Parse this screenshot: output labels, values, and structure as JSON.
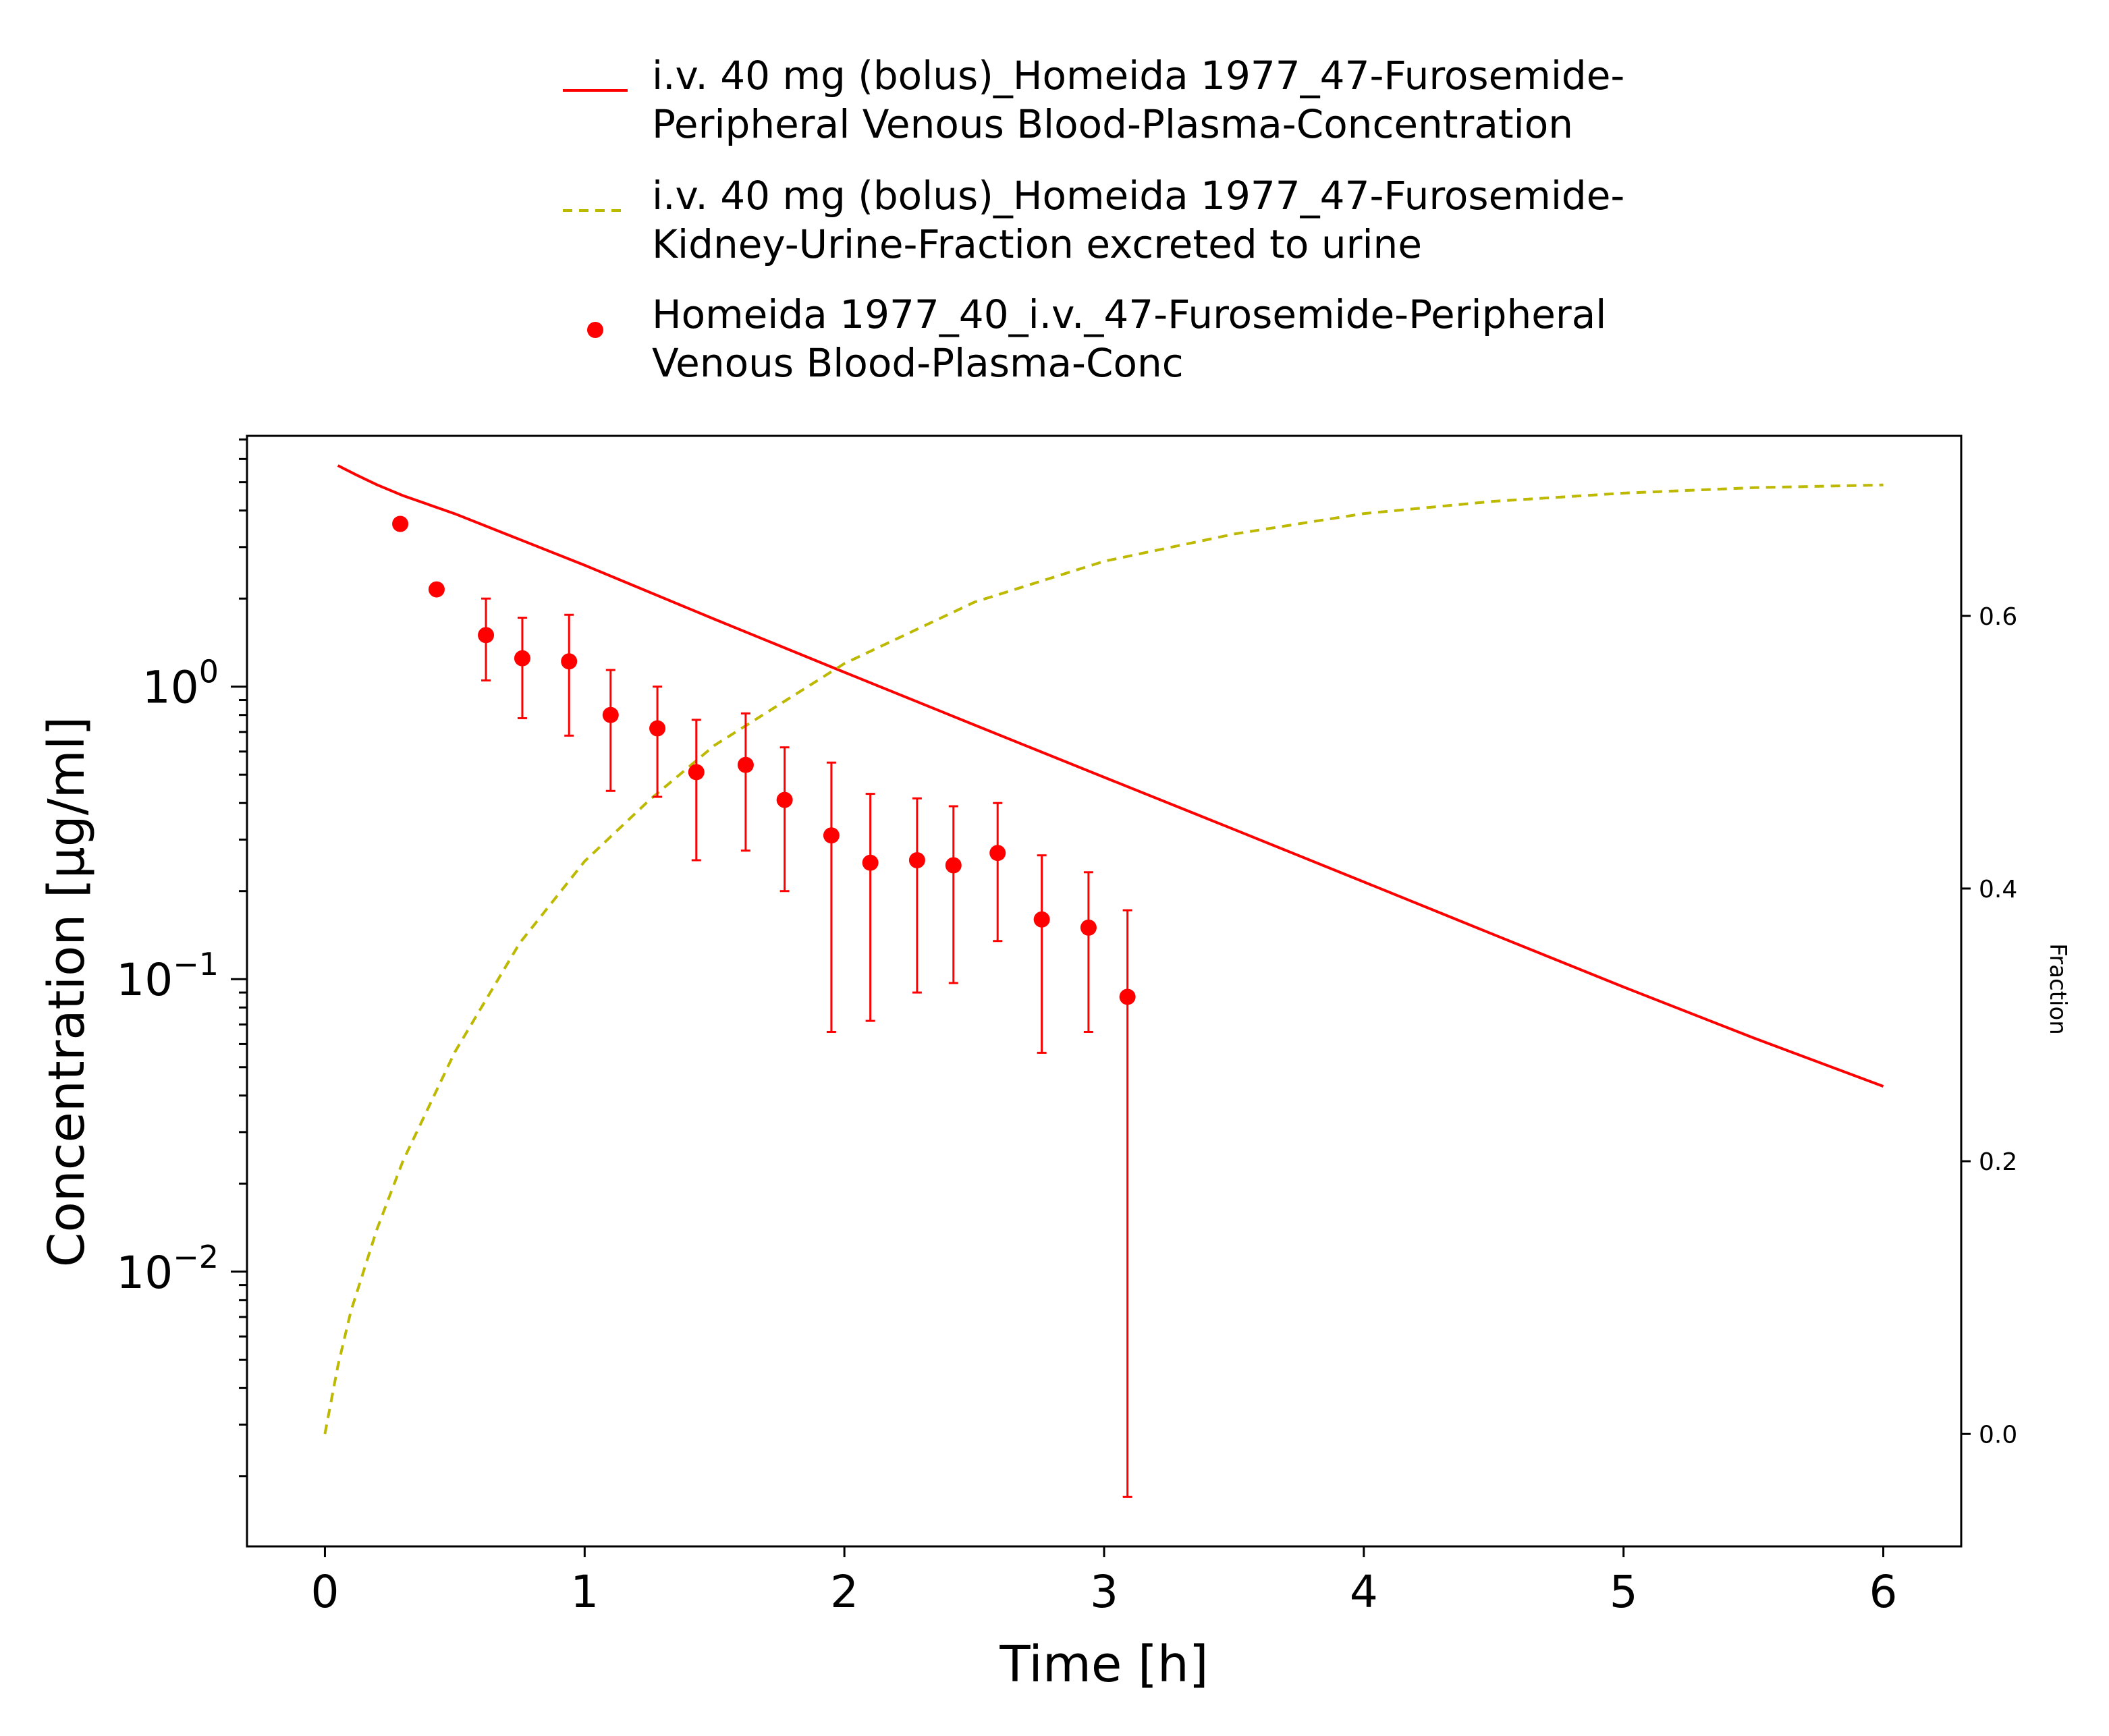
{
  "colors": {
    "plasma_line": "#ff0000",
    "urine_line": "#bdb800",
    "observed": "#ff0000",
    "axis": "#000000"
  },
  "chart_data": {
    "type": "line",
    "xlabel": "Time [h]",
    "ylabel": "Concentration [µg/ml]",
    "y2label": "Fraction",
    "xlim": [
      -0.3,
      6.3
    ],
    "ylim": [
      0.00115,
      7.2
    ],
    "yscale": "log",
    "y2lim": [
      -0.0825,
      0.732
    ],
    "legend_placement": "top",
    "x_ticks": [
      0,
      1,
      2,
      3,
      4,
      5,
      6
    ],
    "y_ticks": [
      {
        "value": 1,
        "base": "10",
        "exp": "0"
      },
      {
        "value": 0.1,
        "base": "10",
        "exp": "−1"
      },
      {
        "value": 0.01,
        "base": "10",
        "exp": "−2"
      }
    ],
    "y2_ticks": [
      "0.0",
      "0.2",
      "0.4",
      "0.6"
    ],
    "series": [
      {
        "name": "i.v. 40 mg (bolus)_Homeida 1977_47-Furosemide-Peripheral Venous Blood-Plasma-Concentration",
        "legend_lines": [
          "i.v. 40 mg (bolus)_Homeida 1977_47-Furosemide-",
          "Peripheral Venous Blood-Plasma-Concentration"
        ],
        "style": "solid",
        "axis": "left",
        "x": [
          0.05,
          0.12,
          0.2,
          0.3,
          0.5,
          1.0,
          1.5,
          2.0,
          2.5,
          3.0,
          3.5,
          4.0,
          4.5,
          5.0,
          5.5,
          6.0
        ],
        "y": [
          5.7,
          5.3,
          4.9,
          4.5,
          3.9,
          2.6,
          1.7,
          1.12,
          0.74,
          0.49,
          0.325,
          0.215,
          0.142,
          0.094,
          0.063,
          0.043
        ]
      },
      {
        "name": "i.v. 40 mg (bolus)_Homeida 1977_47-Furosemide-Kidney-Urine-Fraction excreted to urine",
        "legend_lines": [
          "i.v. 40 mg (bolus)_Homeida 1977_47-Furosemide-",
          "Kidney-Urine-Fraction excreted to urine"
        ],
        "style": "dashed",
        "axis": "right",
        "x": [
          0,
          0.05,
          0.1,
          0.2,
          0.3,
          0.5,
          0.75,
          1.0,
          1.25,
          1.5,
          1.75,
          2.0,
          2.5,
          3.0,
          3.5,
          4.0,
          4.5,
          5.0,
          5.5,
          6.0
        ],
        "y": [
          0.0,
          0.05,
          0.09,
          0.15,
          0.2,
          0.28,
          0.36,
          0.42,
          0.465,
          0.505,
          0.535,
          0.565,
          0.61,
          0.64,
          0.66,
          0.675,
          0.684,
          0.69,
          0.694,
          0.696
        ]
      },
      {
        "name": "Homeida 1977_40_i.v._47-Furosemide-Peripheral Venous Blood-Plasma-Conc",
        "legend_lines": [
          "Homeida 1977_40_i.v._47-Furosemide-Peripheral",
          "Venous Blood-Plasma-Conc"
        ],
        "style": "points",
        "axis": "left",
        "points": [
          {
            "x": 0.29,
            "y": 3.6
          },
          {
            "x": 0.43,
            "y": 2.15
          },
          {
            "x": 0.62,
            "y": 1.5,
            "err_low": 1.05,
            "err_high": 2.0
          },
          {
            "x": 0.76,
            "y": 1.25,
            "err_low": 0.78,
            "err_high": 1.72
          },
          {
            "x": 0.94,
            "y": 1.22,
            "err_low": 0.68,
            "err_high": 1.76
          },
          {
            "x": 1.1,
            "y": 0.8,
            "err_low": 0.44,
            "err_high": 1.14
          },
          {
            "x": 1.28,
            "y": 0.72,
            "err_low": 0.42,
            "err_high": 1.0
          },
          {
            "x": 1.43,
            "y": 0.51,
            "err_low": 0.255,
            "err_high": 0.77
          },
          {
            "x": 1.62,
            "y": 0.54,
            "err_low": 0.275,
            "err_high": 0.81
          },
          {
            "x": 1.77,
            "y": 0.41,
            "err_low": 0.2,
            "err_high": 0.62
          },
          {
            "x": 1.95,
            "y": 0.31,
            "err_low": 0.066,
            "err_high": 0.55
          },
          {
            "x": 2.1,
            "y": 0.25,
            "err_low": 0.072,
            "err_high": 0.43
          },
          {
            "x": 2.28,
            "y": 0.255,
            "err_low": 0.09,
            "err_high": 0.415
          },
          {
            "x": 2.42,
            "y": 0.245,
            "err_low": 0.097,
            "err_high": 0.39
          },
          {
            "x": 2.59,
            "y": 0.27,
            "err_low": 0.135,
            "err_high": 0.4
          },
          {
            "x": 2.76,
            "y": 0.16,
            "err_low": 0.056,
            "err_high": 0.265
          },
          {
            "x": 2.94,
            "y": 0.15,
            "err_low": 0.066,
            "err_high": 0.232
          },
          {
            "x": 3.09,
            "y": 0.087,
            "err_low": 0.0017,
            "err_high": 0.172
          }
        ]
      }
    ]
  }
}
